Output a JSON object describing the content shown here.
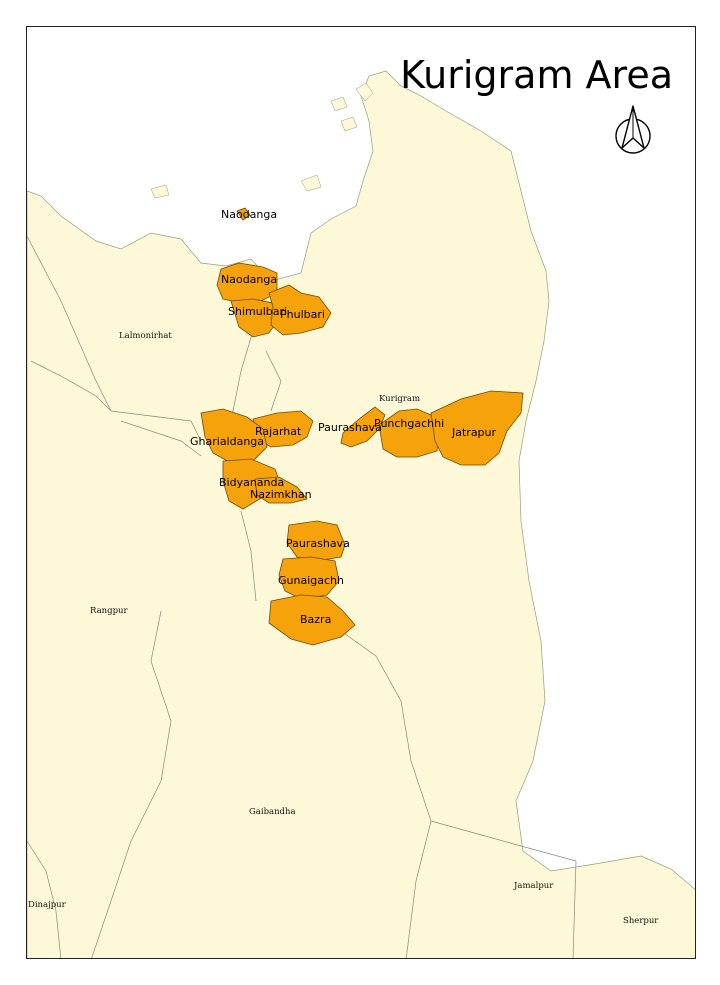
{
  "map": {
    "title": "Kurigram Area",
    "north_arrow_icon": "north-arrow-icon",
    "colors": {
      "land": "#fcf8d8",
      "water": "#ffffff",
      "highlight": "#f6a20b",
      "highlight_stroke": "#6b4a0a",
      "boundary": "#8a8a7a"
    },
    "districts": [
      "Lalmonirhat",
      "Kurigram",
      "Rangpur",
      "Gaibandha",
      "Jamalpur",
      "Dinajpur",
      "Sherpur"
    ],
    "unions": [
      "Naodanga",
      "Naodanga",
      "Shimulbari",
      "Phulbari",
      "Rajarhat",
      "Gharialdanga",
      "Bidyananda",
      "Nazimkhan",
      "Paurashava",
      "Punchgachhi",
      "Jatrapur",
      "Paurashava",
      "Gunaigachh",
      "Bazra"
    ]
  }
}
